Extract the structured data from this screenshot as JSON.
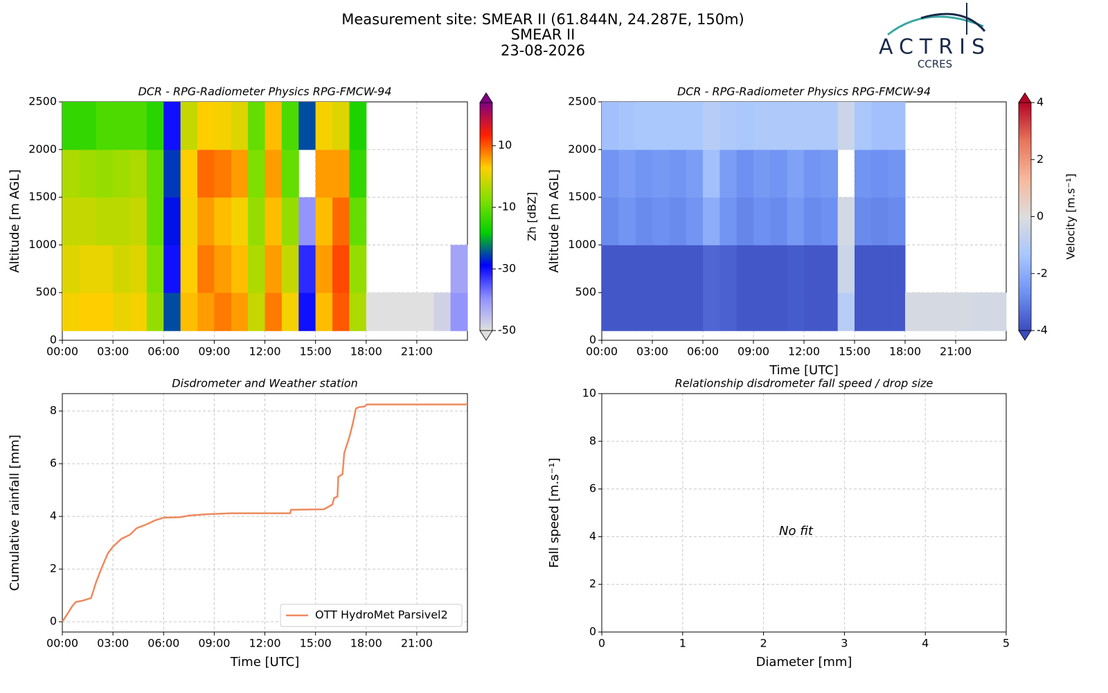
{
  "header": {
    "title": "Measurement site: SMEAR II (61.844N, 24.287E, 150m)",
    "site": "SMEAR II",
    "date": "23-08-2026"
  },
  "logo": {
    "name": "ACTRIS",
    "subtitle": "CCRES"
  },
  "chart_data": [
    {
      "type": "heatmap",
      "title": "DCR - RPG-Radiometer Physics RPG-FMCW-94",
      "ylabel": "Altitude [m AGL]",
      "colorbar_label": "Zh [dBZ]",
      "xlim": [
        0,
        24
      ],
      "xticks": [
        {
          "value": 0,
          "label": "00:00"
        },
        {
          "value": 3,
          "label": "03:00"
        },
        {
          "value": 6,
          "label": "06:00"
        },
        {
          "value": 9,
          "label": "09:00"
        },
        {
          "value": 12,
          "label": "12:00"
        },
        {
          "value": 15,
          "label": "15:00"
        },
        {
          "value": 18,
          "label": "18:00"
        },
        {
          "value": 21,
          "label": "21:00"
        }
      ],
      "ylim": [
        0,
        2500
      ],
      "yticks": [
        0,
        500,
        1000,
        1500,
        2000,
        2500
      ],
      "grid": true,
      "x_edges": [
        0,
        1,
        2,
        3,
        4,
        5,
        6,
        7,
        8,
        9,
        10,
        11,
        12,
        13,
        14,
        15,
        16,
        17,
        18,
        19,
        20,
        21,
        22,
        23,
        24
      ],
      "y_edges": [
        100,
        500,
        1000,
        1500,
        2000,
        2500
      ],
      "z": [
        [
          2,
          3,
          3,
          1,
          2,
          -6,
          -25,
          4,
          6,
          8,
          6,
          -2,
          8,
          2,
          -30,
          4,
          10,
          -4,
          -50,
          -50,
          -50,
          -50,
          -48,
          -40
        ],
        [
          0,
          1,
          1,
          -1,
          0,
          -8,
          -30,
          3,
          8,
          6,
          4,
          -4,
          6,
          -2,
          -32,
          6,
          11,
          -6,
          null,
          null,
          null,
          null,
          null,
          -42
        ],
        [
          -2,
          -2,
          -3,
          -3,
          -2,
          -10,
          -28,
          2,
          6,
          4,
          2,
          -6,
          4,
          -6,
          -40,
          4,
          9,
          -10,
          null,
          null,
          null,
          null,
          null,
          null
        ],
        [
          -4,
          -5,
          -6,
          -5,
          -4,
          -10,
          -26,
          3,
          9,
          8,
          6,
          -8,
          6,
          -10,
          null,
          6,
          6,
          -14,
          null,
          null,
          null,
          null,
          null,
          null
        ],
        [
          -14,
          -14,
          -12,
          -12,
          -12,
          -15,
          -30,
          -2,
          3,
          2,
          0,
          -10,
          4,
          -12,
          -25,
          2,
          0,
          -16,
          null,
          null,
          null,
          null,
          null,
          null
        ]
      ],
      "clim": [
        -50,
        24
      ],
      "cticks": [
        10,
        -10,
        -30,
        -50
      ],
      "colormap": [
        "#e0e0e0",
        "#9090ff",
        "#0000ff",
        "#00d000",
        "#80e000",
        "#ffd000",
        "#ff2000",
        "#800080"
      ]
    },
    {
      "type": "heatmap",
      "title": "DCR - RPG-Radiometer Physics RPG-FMCW-94",
      "ylabel": "Altitude [m AGL]",
      "xlabel": "Time [UTC]",
      "colorbar_label": "Velocity [m.s⁻¹]",
      "xlim": [
        0,
        24
      ],
      "xticks": [
        {
          "value": 0,
          "label": "00:00"
        },
        {
          "value": 3,
          "label": "03:00"
        },
        {
          "value": 6,
          "label": "06:00"
        },
        {
          "value": 9,
          "label": "09:00"
        },
        {
          "value": 12,
          "label": "12:00"
        },
        {
          "value": 15,
          "label": "15:00"
        },
        {
          "value": 18,
          "label": "18:00"
        },
        {
          "value": 21,
          "label": "21:00"
        }
      ],
      "ylim": [
        0,
        2500
      ],
      "yticks": [
        0,
        500,
        1000,
        1500,
        2000,
        2500
      ],
      "grid": true,
      "x_edges": [
        0,
        1,
        2,
        3,
        4,
        5,
        6,
        7,
        8,
        9,
        10,
        11,
        12,
        13,
        14,
        15,
        16,
        17,
        18,
        19,
        20,
        21,
        22,
        23,
        24
      ],
      "y_edges": [
        100,
        500,
        1000,
        1500,
        2000,
        2500
      ],
      "z": [
        [
          -3.8,
          -3.8,
          -3.8,
          -3.8,
          -3.8,
          -3.8,
          -3.5,
          -3.6,
          -3.8,
          -3.8,
          -3.8,
          -3.7,
          -3.8,
          -3.8,
          -1,
          -3.8,
          -3.8,
          -3.8,
          -0.2,
          -0.2,
          -0.2,
          -0.2,
          -0.3,
          -0.3
        ],
        [
          -3.8,
          -3.8,
          -3.8,
          -3.8,
          -3.8,
          -3.8,
          -3.5,
          -3.6,
          -3.8,
          -3.8,
          -3.8,
          -3.7,
          -3.8,
          -3.8,
          -0.5,
          -3.8,
          -3.8,
          -3.8,
          null,
          null,
          null,
          null,
          null,
          null
        ],
        [
          -2.8,
          -2.6,
          -2.8,
          -2.7,
          -2.8,
          -2.6,
          -2,
          -2.6,
          -2.9,
          -2.7,
          -2.8,
          -2.5,
          -2.8,
          -2.7,
          -0.3,
          -2.8,
          -2.9,
          -2.8,
          null,
          null,
          null,
          null,
          null,
          null
        ],
        [
          -2.6,
          -2.4,
          -2.6,
          -2.5,
          -2.6,
          -2.4,
          -1.5,
          -2.4,
          -2.7,
          -2.5,
          -2.6,
          -2.3,
          -2.6,
          -2.5,
          null,
          -2.6,
          -2.7,
          -2.6,
          null,
          null,
          null,
          null,
          null,
          null
        ],
        [
          -1.5,
          -1.4,
          -1.3,
          -1.3,
          -1.3,
          -1.3,
          -1,
          -1.2,
          -1.3,
          -1.2,
          -1.2,
          -1.2,
          -1.2,
          -1.2,
          -0.5,
          -1.3,
          -1.5,
          -1.5,
          null,
          null,
          null,
          null,
          null,
          null
        ]
      ],
      "clim": [
        -4,
        4
      ],
      "cticks": [
        4,
        2,
        0,
        -2,
        -4
      ],
      "colormap": [
        "#3b4cc0",
        "#6f92f3",
        "#aac7fd",
        "#dddddd",
        "#f7b89c",
        "#e7745b",
        "#b40426"
      ]
    },
    {
      "type": "line",
      "title": "Disdrometer and Weather station",
      "ylabel": "Cumulative rainfall [mm]",
      "xlabel": "Time [UTC]",
      "xlim": [
        0,
        24
      ],
      "xticks": [
        {
          "value": 0,
          "label": "00:00"
        },
        {
          "value": 3,
          "label": "03:00"
        },
        {
          "value": 6,
          "label": "06:00"
        },
        {
          "value": 9,
          "label": "09:00"
        },
        {
          "value": 12,
          "label": "12:00"
        },
        {
          "value": 15,
          "label": "15:00"
        },
        {
          "value": 18,
          "label": "18:00"
        },
        {
          "value": 21,
          "label": "21:00"
        }
      ],
      "ylim": [
        -0.39,
        8.66
      ],
      "yticks": [
        0,
        2,
        4,
        6,
        8
      ],
      "grid": true,
      "legend": "lower right",
      "x": [
        0,
        0.3,
        0.6,
        0.8,
        1.2,
        1.7,
        2,
        2.3,
        2.7,
        3,
        3.5,
        4,
        4.4,
        5,
        5.5,
        6,
        7,
        7.5,
        8.5,
        10,
        13.5,
        13.55,
        15.5,
        16,
        16.1,
        16.3,
        16.35,
        16.6,
        16.7,
        17,
        17.2,
        17.4,
        17.6,
        17.9,
        18.05,
        24
      ],
      "series": [
        {
          "name": "OTT HydroMet Parsivel2",
          "color": "#ee8a5e",
          "values": [
            0,
            0.3,
            0.6,
            0.75,
            0.8,
            0.9,
            1.5,
            2,
            2.6,
            2.85,
            3.15,
            3.3,
            3.55,
            3.7,
            3.85,
            3.95,
            3.97,
            4.03,
            4.08,
            4.12,
            4.12,
            4.25,
            4.27,
            4.45,
            4.7,
            4.75,
            5.5,
            5.6,
            6.4,
            7,
            7.5,
            8.1,
            8.15,
            8.17,
            8.25,
            8.25
          ]
        }
      ]
    },
    {
      "type": "scatter",
      "title": "Relationship disdrometer fall speed / drop size",
      "ylabel": "Fall speed [m.s⁻¹]",
      "xlabel": "Diameter [mm]",
      "annotation": "No fit",
      "xlim": [
        0,
        5
      ],
      "xticks": [
        0,
        1,
        2,
        3,
        4,
        5
      ],
      "ylim": [
        0,
        10
      ],
      "yticks": [
        0,
        2,
        4,
        6,
        8,
        10
      ],
      "grid": true
    }
  ]
}
